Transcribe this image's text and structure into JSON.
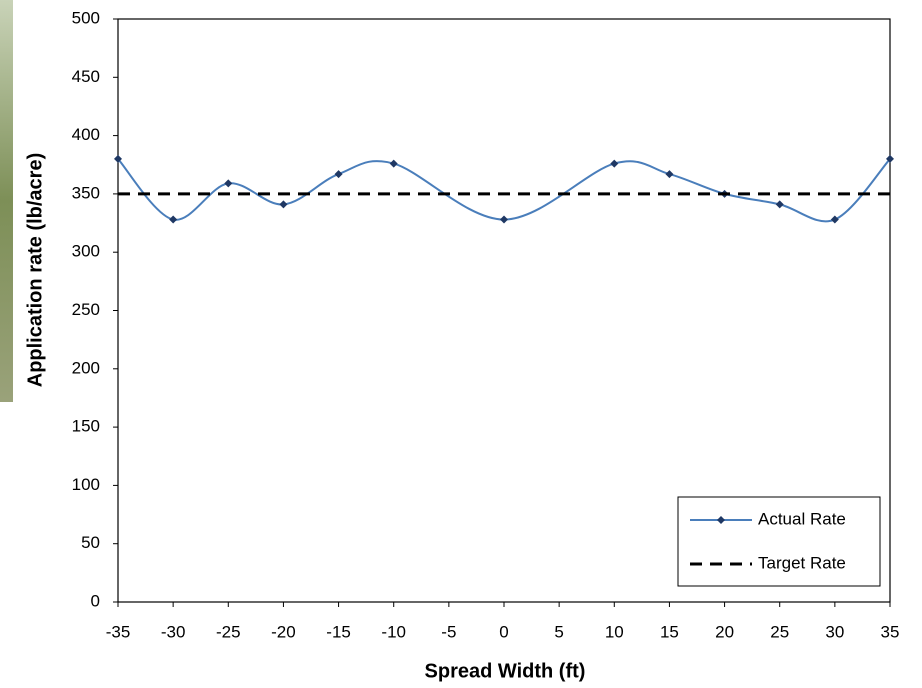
{
  "chart_data": {
    "type": "line",
    "xlabel": "Spread Width (ft)",
    "ylabel": "Application rate (lb/acre)",
    "xlim": [
      -35,
      35
    ],
    "xticks": [
      -35,
      -30,
      -25,
      -20,
      -15,
      -10,
      -5,
      0,
      5,
      10,
      15,
      20,
      25,
      30,
      35
    ],
    "ylim": [
      0,
      500
    ],
    "yticks": [
      0,
      50,
      100,
      150,
      200,
      250,
      300,
      350,
      400,
      450,
      500
    ],
    "legend": "lower right",
    "series": [
      {
        "name": "Actual Rate",
        "color": "#4a7ebb",
        "marker_color": "#1f3864",
        "smooth": true,
        "x": [
          -35,
          -30,
          -25,
          -20,
          -15,
          -10,
          0,
          10,
          15,
          20,
          25,
          30,
          35
        ],
        "values": [
          380,
          328,
          359,
          341,
          367,
          376,
          328,
          376,
          367,
          350,
          341,
          328,
          380
        ]
      },
      {
        "name": "Target Rate",
        "color": "#000000",
        "dash": true,
        "x": [
          -35,
          35
        ],
        "values": [
          350,
          350
        ]
      }
    ]
  }
}
